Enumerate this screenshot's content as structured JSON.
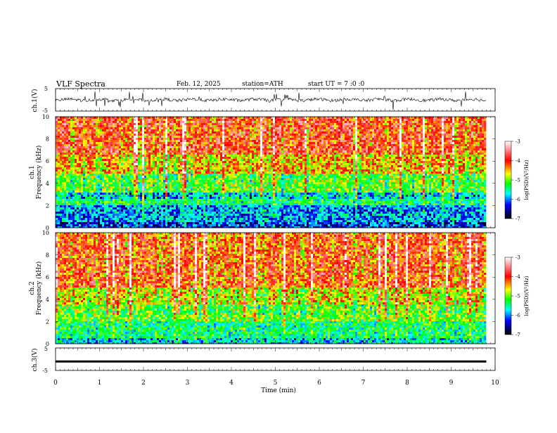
{
  "header": {
    "title": "VLF Spectra",
    "date": "Feb. 12, 2025",
    "station": "station=ATH",
    "start_ut": "start UT = 7 :0 :0"
  },
  "colors": {
    "trace": "#000000",
    "colormap": [
      "#ffffff",
      "#ff0000",
      "#ffff00",
      "#00ff00",
      "#00ffff",
      "#0000ff",
      "#000000"
    ]
  },
  "chart_data": [
    {
      "type": "line",
      "panel": "ch1-waveform",
      "ylabel": "ch.1(V)",
      "ylim": [
        -5,
        5
      ],
      "y_ticks": [
        "5",
        "-5"
      ],
      "xlim": [
        0,
        10
      ]
    },
    {
      "type": "heatmap",
      "panel": "ch1-spectrogram",
      "ylabel_channel": "ch.1",
      "ylabel": "Frequency (kHz)",
      "ylim": [
        0,
        10
      ],
      "y_ticks": [
        "0",
        "2",
        "4",
        "6",
        "8",
        "10"
      ],
      "xlim": [
        0,
        10
      ],
      "data_end_min": 9.8,
      "colorbar": {
        "label": "log(PSD)(V²/Hz)",
        "range": [
          -7,
          -3
        ],
        "ticks": [
          "-3",
          "-4",
          "-5",
          "-6",
          "-7"
        ]
      },
      "bands_khz": [
        {
          "from": 0.0,
          "to": 0.6,
          "level": -6.3
        },
        {
          "from": 0.6,
          "to": 2.0,
          "level": -6.0
        },
        {
          "from": 2.0,
          "to": 2.6,
          "level": -5.4
        },
        {
          "from": 2.6,
          "to": 3.2,
          "level": -5.7
        },
        {
          "from": 3.2,
          "to": 4.8,
          "level": -5.0
        },
        {
          "from": 4.8,
          "to": 6.5,
          "level": -4.4
        },
        {
          "from": 6.5,
          "to": 10.0,
          "level": -3.9
        }
      ]
    },
    {
      "type": "heatmap",
      "panel": "ch2-spectrogram",
      "ylabel_channel": "ch.2",
      "ylabel": "Frequency (kHz)",
      "ylim": [
        0,
        10
      ],
      "y_ticks": [
        "0",
        "2",
        "4",
        "6",
        "8",
        "10"
      ],
      "xlim": [
        0,
        10
      ],
      "data_end_min": 9.8,
      "colorbar": {
        "label": "log(PSD)(V²/Hz)",
        "range": [
          -7,
          -3
        ],
        "ticks": [
          "-3",
          "-4",
          "-5",
          "-6",
          "-7"
        ]
      },
      "bands_khz": [
        {
          "from": 0.0,
          "to": 0.5,
          "level": -5.8
        },
        {
          "from": 0.5,
          "to": 2.0,
          "level": -5.4
        },
        {
          "from": 2.0,
          "to": 3.6,
          "level": -5.0
        },
        {
          "from": 3.6,
          "to": 5.0,
          "level": -4.6
        },
        {
          "from": 5.0,
          "to": 10.0,
          "level": -4.0
        }
      ]
    },
    {
      "type": "line",
      "panel": "ch3-waveform",
      "ylabel": "ch.3(V)",
      "ylim": [
        -5,
        5
      ],
      "y_ticks": [
        "5",
        "-5"
      ],
      "xlim": [
        0,
        10
      ],
      "xlabel": "Time (min)",
      "x_ticks": [
        "0",
        "1",
        "2",
        "3",
        "4",
        "5",
        "6",
        "7",
        "8",
        "9",
        "10"
      ],
      "level_v": -1.0
    }
  ]
}
